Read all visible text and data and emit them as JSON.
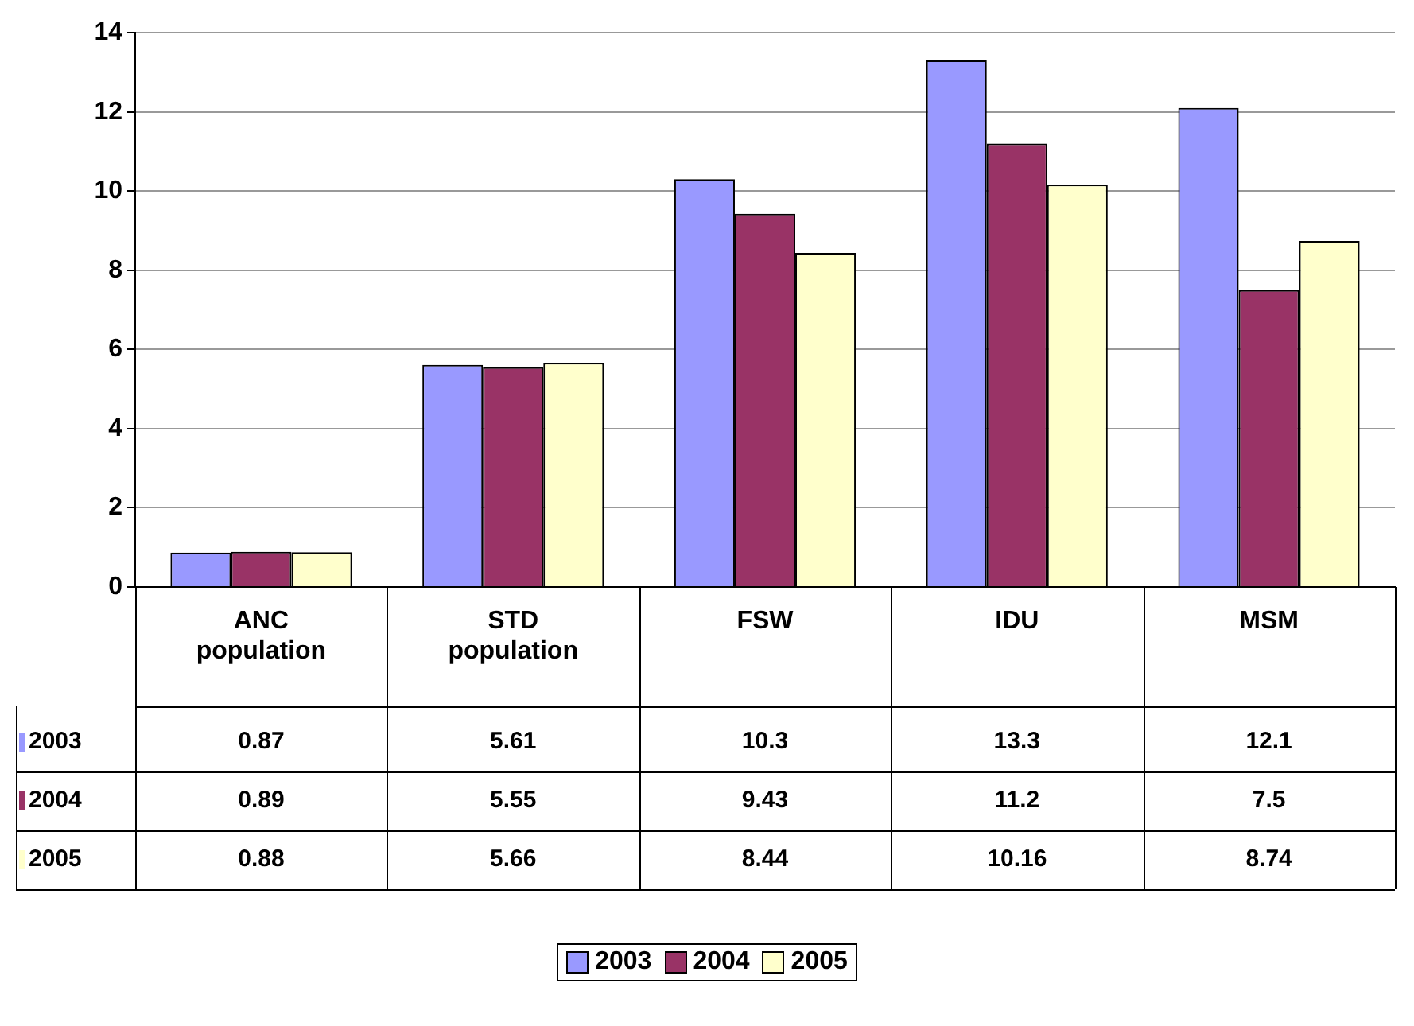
{
  "chart_data": {
    "type": "bar",
    "categories": [
      "ANC population",
      "STD population",
      "FSW",
      "IDU",
      "MSM"
    ],
    "series": [
      {
        "name": "2003",
        "color": "#9999ff",
        "values": [
          0.87,
          5.61,
          10.3,
          13.3,
          12.1
        ]
      },
      {
        "name": "2004",
        "color": "#993366",
        "values": [
          0.89,
          5.55,
          9.43,
          11.2,
          7.5
        ]
      },
      {
        "name": "2005",
        "color": "#ffffcc",
        "values": [
          0.88,
          5.66,
          8.44,
          10.16,
          8.74
        ]
      }
    ],
    "ylim": [
      0,
      14
    ],
    "yticks": [
      0,
      2,
      4,
      6,
      8,
      10,
      12,
      14
    ],
    "grid": "y",
    "legend": "bottom",
    "data_labels": true
  }
}
